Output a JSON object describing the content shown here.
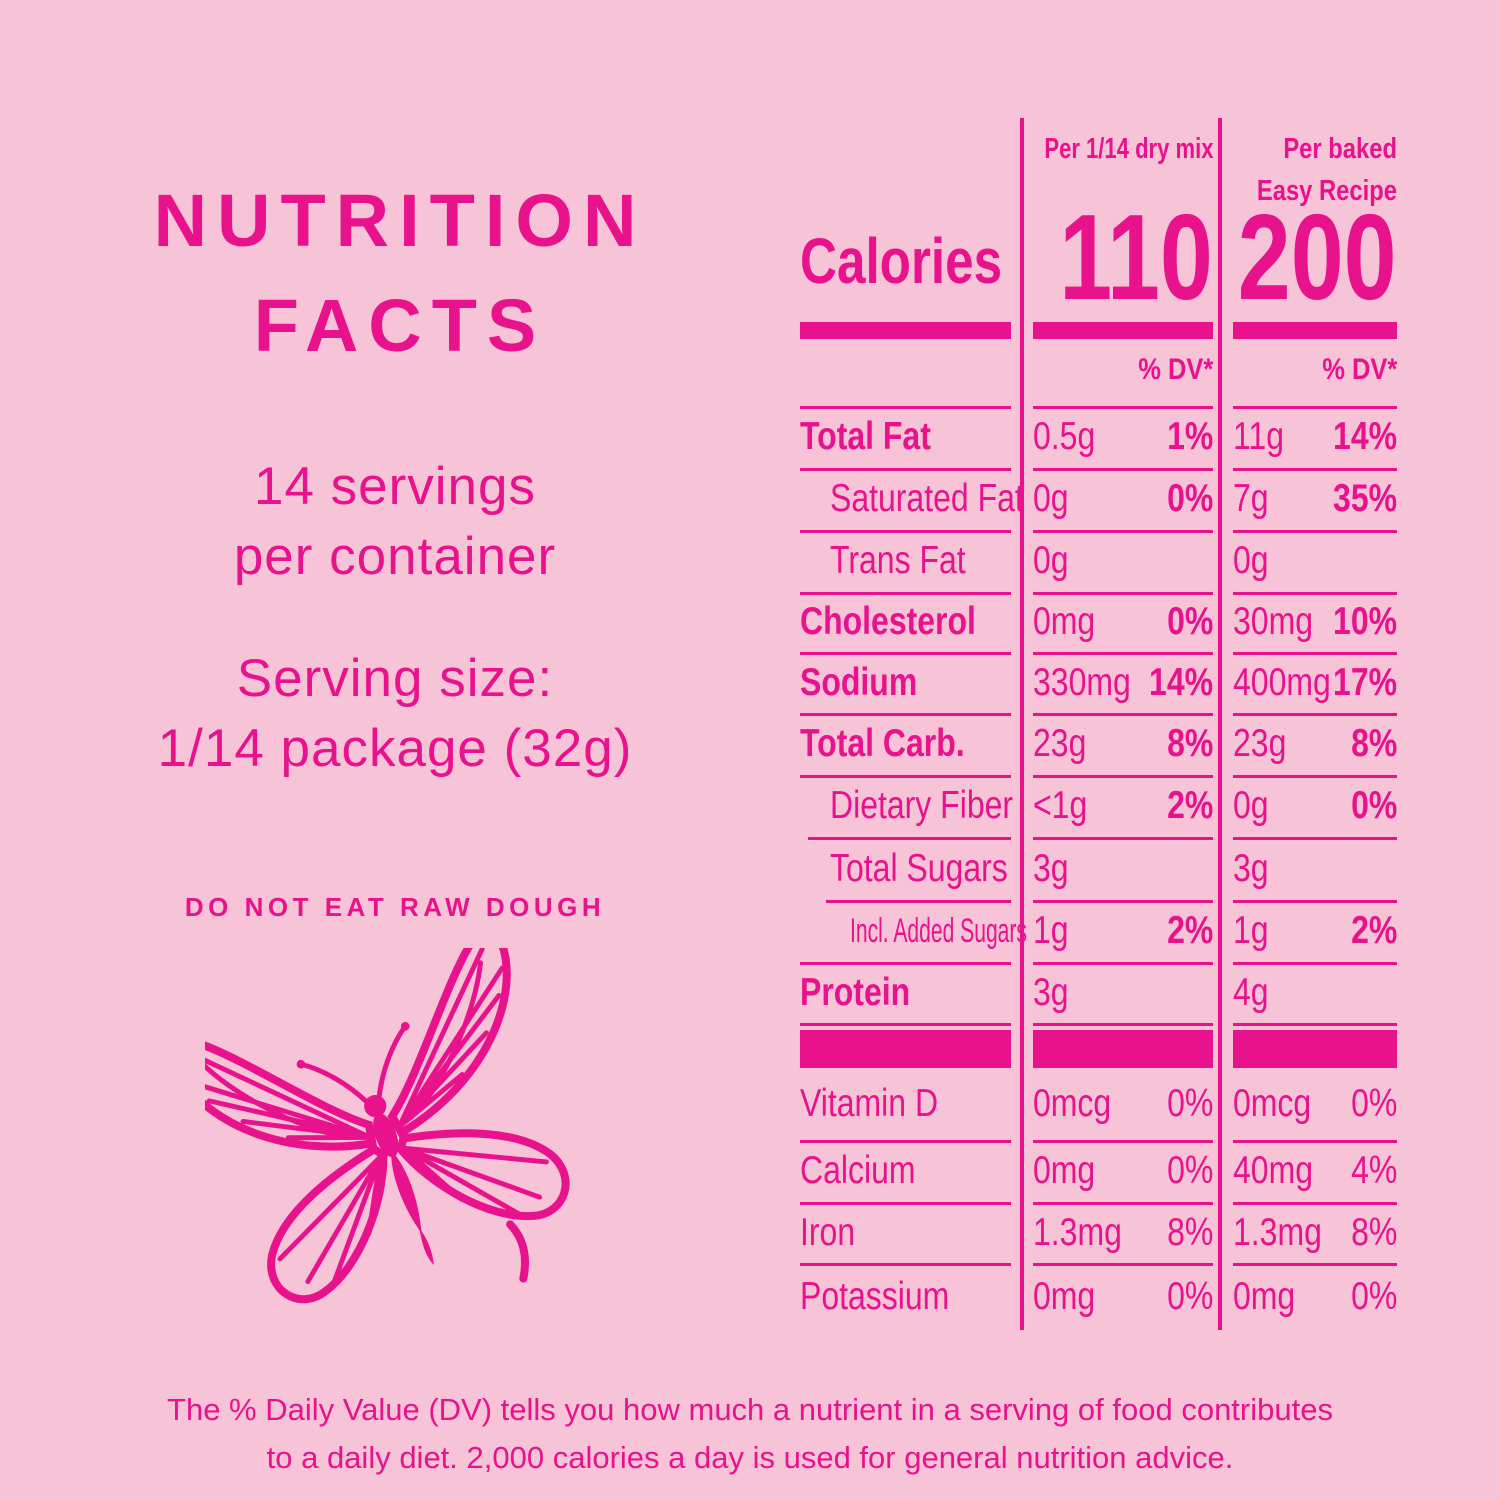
{
  "colors": {
    "background": "#F7C3D6",
    "magenta": "#E8128C"
  },
  "left_panel": {
    "title_line1": "NUTRITION",
    "title_line2": "FACTS",
    "servings_line1": "14 servings",
    "servings_line2": "per container",
    "serving_size_line1": "Serving size:",
    "serving_size_line2": "1/14 package (32g)",
    "warning": "DO NOT EAT RAW DOUGH"
  },
  "table": {
    "col1_header": "Per 1/14 dry mix",
    "col2_header_line1": "Per baked",
    "col2_header_line2": "Easy Recipe",
    "calories_label": "Calories",
    "col1_calories": "110",
    "col2_calories": "200",
    "col1_dv_header": "% DV*",
    "col2_dv_header": "% DV*",
    "rows": [
      {
        "label": "Total Fat",
        "c1_amount": "0.5g",
        "c1_dv": "1%",
        "c2_amount": "11g",
        "c2_dv": "14%"
      },
      {
        "label": "Saturated Fat",
        "c1_amount": "0g",
        "c1_dv": "0%",
        "c2_amount": "7g",
        "c2_dv": "35%"
      },
      {
        "label": "Trans Fat",
        "c1_amount": "0g",
        "c1_dv": "",
        "c2_amount": "0g",
        "c2_dv": ""
      },
      {
        "label": "Cholesterol",
        "c1_amount": "0mg",
        "c1_dv": "0%",
        "c2_amount": "30mg",
        "c2_dv": "10%"
      },
      {
        "label": "Sodium",
        "c1_amount": "330mg",
        "c1_dv": "14%",
        "c2_amount": "400mg",
        "c2_dv": "17%"
      },
      {
        "label": "Total Carb.",
        "c1_amount": "23g",
        "c1_dv": "8%",
        "c2_amount": "23g",
        "c2_dv": "8%"
      },
      {
        "label": "Dietary Fiber",
        "c1_amount": "<1g",
        "c1_dv": "2%",
        "c2_amount": "0g",
        "c2_dv": "0%"
      },
      {
        "label": "Total Sugars",
        "c1_amount": "3g",
        "c1_dv": "",
        "c2_amount": "3g",
        "c2_dv": ""
      },
      {
        "label": "Incl. Added Sugars",
        "c1_amount": "1g",
        "c1_dv": "2%",
        "c2_amount": "1g",
        "c2_dv": "2%"
      },
      {
        "label": "Protein",
        "c1_amount": "3g",
        "c1_dv": "",
        "c2_amount": "4g",
        "c2_dv": ""
      }
    ],
    "vitamin_rows": [
      {
        "label": "Vitamin D",
        "c1_amount": "0mcg",
        "c1_dv": "0%",
        "c2_amount": "0mcg",
        "c2_dv": "0%"
      },
      {
        "label": "Calcium",
        "c1_amount": "0mg",
        "c1_dv": "0%",
        "c2_amount": "40mg",
        "c2_dv": "4%"
      },
      {
        "label": "Iron",
        "c1_amount": "1.3mg",
        "c1_dv": "8%",
        "c2_amount": "1.3mg",
        "c2_dv": "8%"
      },
      {
        "label": "Potassium",
        "c1_amount": "0mg",
        "c1_dv": "0%",
        "c2_amount": "0mg",
        "c2_dv": "0%"
      }
    ]
  },
  "footnote_line1": "The % Daily Value (DV) tells you how much a nutrient in a serving of food contributes",
  "footnote_line2": "to a daily diet. 2,000 calories a day is used for general nutrition advice."
}
